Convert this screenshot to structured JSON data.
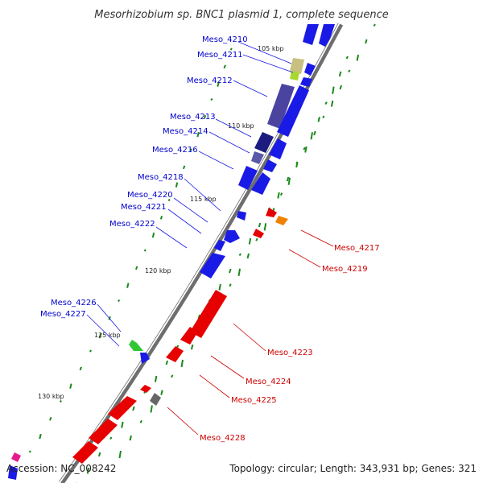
{
  "title": "Mesorhizobium sp. BNC1 plasmid 1, complete sequence",
  "footer": {
    "accession": "Accession: NC_008242",
    "summary": "Topology: circular; Length: 343,931 bp; Genes: 321"
  },
  "colors": {
    "forward_strand": "#0000e6",
    "reverse_strand": "#e60000",
    "backbone": "#8c8c8c",
    "gc_skew": "#1a8a1a",
    "forward_label": "#0000cc",
    "reverse_label": "#cc0000"
  },
  "kbp_labels": [
    "105 kbp",
    "110 kbp",
    "115 kbp",
    "120 kbp",
    "125 kbp",
    "130 kbp"
  ],
  "forward_genes": [
    "Meso_4210",
    "Meso_4211",
    "Meso_4212",
    "Meso_4213",
    "Meso_4214",
    "Meso_4216",
    "Meso_4218",
    "Meso_4220",
    "Meso_4221",
    "Meso_4222",
    "Meso_4226",
    "Meso_4227"
  ],
  "reverse_genes": [
    "Meso_4217",
    "Meso_4219",
    "Meso_4223",
    "Meso_4224",
    "Meso_4225",
    "Meso_4228"
  ]
}
